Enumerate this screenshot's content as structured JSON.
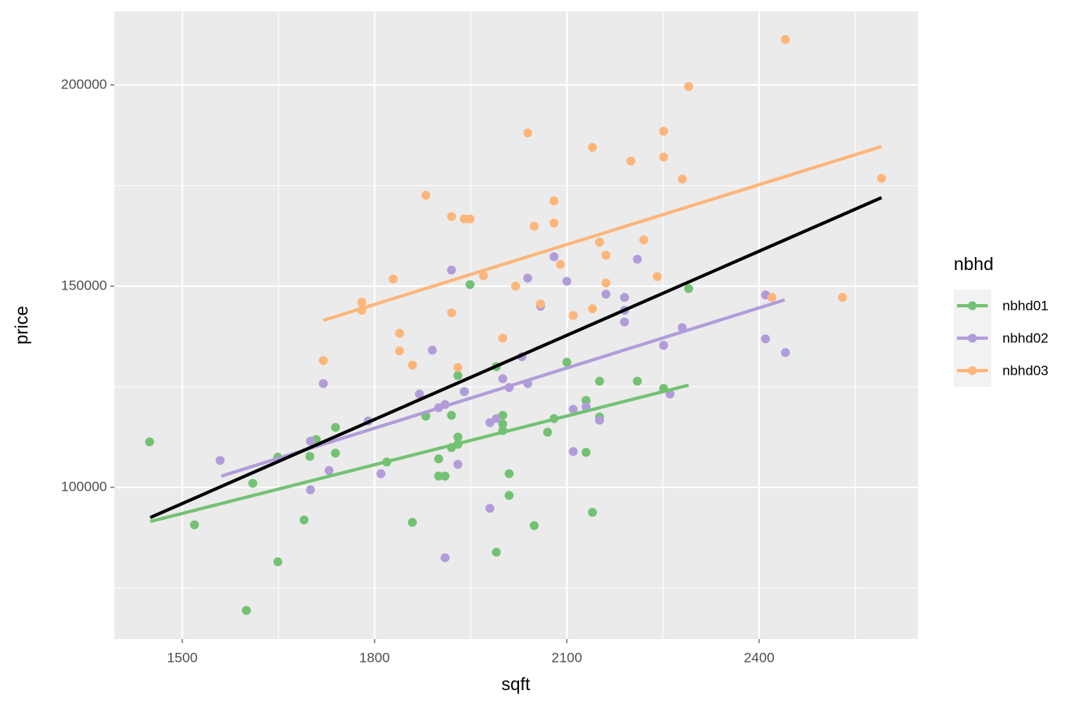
{
  "chart_data": {
    "type": "scatter",
    "x_label": "sqft",
    "y_label": "price",
    "legend_title": "nbhd",
    "legend_position": "right",
    "grid": true,
    "xlim": [
      1394,
      2648
    ],
    "ylim": [
      62300,
      218300
    ],
    "xticks": [
      1500,
      1800,
      2100,
      2400
    ],
    "yticks": [
      100000,
      150000,
      200000
    ],
    "x_minor_ticks": [
      1650,
      1950,
      2250,
      2550
    ],
    "y_minor_ticks": [
      75000,
      125000,
      175000
    ],
    "series": [
      {
        "name": "nbhd01",
        "color": "#73c273",
        "x": [
          1449,
          1519,
          1600,
          1610,
          1649,
          1649,
          1690,
          1699,
          1709,
          1739,
          1739,
          1819,
          1859,
          1880,
          1900,
          1900,
          1910,
          1920,
          1920,
          1930,
          1930,
          1930,
          1949,
          1990,
          1990,
          2000,
          2000,
          2000,
          2010,
          2010,
          2049,
          2070,
          2080,
          2100,
          2130,
          2130,
          2140,
          2151,
          2151,
          2210,
          2251,
          2290
        ],
        "values": [
          111300,
          90700,
          69400,
          101000,
          81500,
          107500,
          91900,
          107700,
          111900,
          114900,
          108500,
          106300,
          91300,
          117700,
          107100,
          102800,
          102800,
          117900,
          109900,
          110700,
          112500,
          127800,
          150400,
          130000,
          83900,
          117900,
          115700,
          114100,
          103400,
          98000,
          90500,
          113700,
          117100,
          131100,
          121600,
          108700,
          93800,
          126400,
          117500,
          126400,
          124600,
          149400
        ],
        "fit": {
          "x": [
            1450,
            2290
          ],
          "values": [
            91500,
            125400
          ]
        }
      },
      {
        "name": "nbhd02",
        "color": "#b19cd9",
        "x": [
          1559,
          1700,
          1700,
          1720,
          1729,
          1790,
          1810,
          1870,
          1890,
          1900,
          1910,
          1920,
          1930,
          1940,
          1910,
          1980,
          1980,
          1990,
          2000,
          2010,
          2030,
          2039,
          2039,
          2059,
          2080,
          2100,
          2110,
          2110,
          2130,
          2151,
          2161,
          2190,
          2190,
          2190,
          2210,
          2251,
          2261,
          2280,
          2410,
          2410,
          2441
        ],
        "values": [
          106700,
          111500,
          99400,
          125800,
          104200,
          116500,
          103400,
          123200,
          134100,
          119800,
          120600,
          154000,
          105700,
          123800,
          82500,
          116100,
          94800,
          117100,
          127000,
          124800,
          132500,
          152000,
          125800,
          145000,
          157300,
          151200,
          119400,
          108900,
          120000,
          116700,
          148000,
          147200,
          144000,
          141100,
          156700,
          135300,
          123200,
          139700,
          147800,
          136900,
          133500
        ],
        "fit": {
          "x": [
            1561,
            2440
          ],
          "values": [
            102800,
            146600
          ]
        }
      },
      {
        "name": "nbhd03",
        "color": "#fdb57a",
        "x": [
          1720,
          1780,
          1780,
          1829,
          1839,
          1839,
          1859,
          1880,
          1920,
          1920,
          1930,
          1940,
          1949,
          1970,
          2000,
          2020,
          2039,
          2049,
          2059,
          2080,
          2080,
          2090,
          2110,
          2140,
          2140,
          2151,
          2161,
          2161,
          2200,
          2220,
          2241,
          2251,
          2251,
          2280,
          2290,
          2420,
          2441,
          2530,
          2591
        ],
        "values": [
          131500,
          146000,
          144000,
          151800,
          138300,
          133900,
          130400,
          172600,
          167300,
          143400,
          129800,
          166700,
          166700,
          152600,
          137100,
          150000,
          188100,
          164900,
          145600,
          171200,
          165700,
          155400,
          142700,
          184500,
          144400,
          160900,
          157700,
          150800,
          181100,
          161500,
          152400,
          182100,
          188500,
          176600,
          199600,
          147200,
          211300,
          147200,
          176800
        ],
        "fit": {
          "x": [
            1720,
            2591
          ],
          "values": [
            141500,
            184700
          ]
        }
      }
    ],
    "overall_fit": {
      "color": "#000000",
      "x": [
        1450,
        2591
      ],
      "values": [
        92500,
        172000
      ]
    }
  }
}
